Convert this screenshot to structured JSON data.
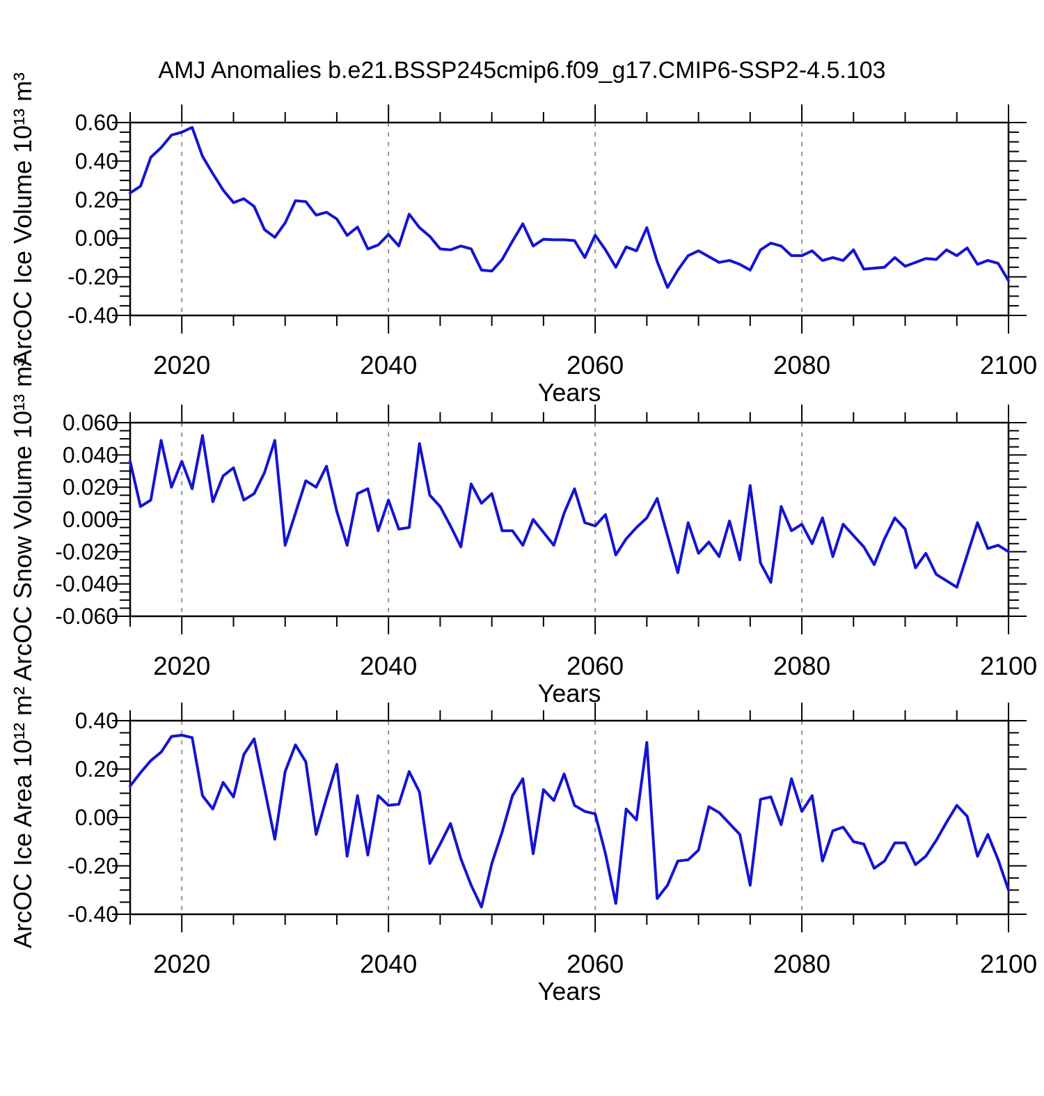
{
  "title": "AMJ Anomalies b.e21.BSSP245cmip6.f09_g17.CMIP6-SSP2-4.5.103",
  "chart_data": {
    "type": "line",
    "xlabel": "Years",
    "x_range": [
      2015,
      2100
    ],
    "xticks": [
      2020,
      2040,
      2060,
      2080,
      2100
    ],
    "xtick_labels": [
      "2020",
      "2040",
      "2060",
      "2080",
      "2100"
    ],
    "xtick_minor_step": 5,
    "x_gridlines": [
      2020,
      2040,
      2060,
      2080
    ],
    "grid_on": true,
    "legend": "none",
    "line_color": "#1414d2",
    "grid_color": "#8a8a8a",
    "frame_color": "#000000",
    "years": [
      2015,
      2016,
      2017,
      2018,
      2019,
      2020,
      2021,
      2022,
      2023,
      2024,
      2025,
      2026,
      2027,
      2028,
      2029,
      2030,
      2031,
      2032,
      2033,
      2034,
      2035,
      2036,
      2037,
      2038,
      2039,
      2040,
      2041,
      2042,
      2043,
      2044,
      2045,
      2046,
      2047,
      2048,
      2049,
      2050,
      2051,
      2052,
      2053,
      2054,
      2055,
      2056,
      2057,
      2058,
      2059,
      2060,
      2061,
      2062,
      2063,
      2064,
      2065,
      2066,
      2067,
      2068,
      2069,
      2070,
      2071,
      2072,
      2073,
      2074,
      2075,
      2076,
      2077,
      2078,
      2079,
      2080,
      2081,
      2082,
      2083,
      2084,
      2085,
      2086,
      2087,
      2088,
      2089,
      2090,
      2091,
      2092,
      2093,
      2094,
      2095,
      2096,
      2097,
      2098,
      2099,
      2100
    ],
    "panels": [
      {
        "name": "ice-volume",
        "ylabel": "ArcOC Ice Volume 10¹³ m³",
        "ylim": [
          -0.4,
          0.6
        ],
        "yticks": [
          0.6,
          0.4,
          0.2,
          0.0,
          -0.2,
          -0.4
        ],
        "ytick_labels": [
          "0.60",
          "0.40",
          "0.20",
          "0.00",
          "-0.20",
          "-0.40"
        ],
        "ytick_minor_step": 0.05,
        "values": [
          0.235,
          0.27,
          0.42,
          0.47,
          0.535,
          0.55,
          0.575,
          0.425,
          0.335,
          0.25,
          0.185,
          0.205,
          0.165,
          0.045,
          0.005,
          0.08,
          0.195,
          0.19,
          0.12,
          0.135,
          0.1,
          0.015,
          0.058,
          -0.055,
          -0.035,
          0.02,
          -0.04,
          0.125,
          0.055,
          0.01,
          -0.055,
          -0.06,
          -0.04,
          -0.055,
          -0.165,
          -0.17,
          -0.11,
          -0.015,
          0.075,
          -0.04,
          -0.005,
          -0.008,
          -0.008,
          -0.012,
          -0.1,
          0.016,
          -0.06,
          -0.15,
          -0.045,
          -0.065,
          0.055,
          -0.12,
          -0.255,
          -0.165,
          -0.09,
          -0.065,
          -0.095,
          -0.125,
          -0.115,
          -0.135,
          -0.165,
          -0.06,
          -0.025,
          -0.04,
          -0.09,
          -0.09,
          -0.065,
          -0.115,
          -0.1,
          -0.115,
          -0.06,
          -0.16,
          -0.155,
          -0.15,
          -0.1,
          -0.145,
          -0.125,
          -0.105,
          -0.11,
          -0.06,
          -0.09,
          -0.05,
          -0.135,
          -0.115,
          -0.13,
          -0.22
        ]
      },
      {
        "name": "snow-volume",
        "ylabel": "ArcOC Snow Volume 10¹³ m³",
        "ylim": [
          -0.06,
          0.06
        ],
        "yticks": [
          0.06,
          0.04,
          0.02,
          0.0,
          -0.02,
          -0.04,
          -0.06
        ],
        "ytick_labels": [
          "0.060",
          "0.040",
          "0.020",
          "0.000",
          "-0.020",
          "-0.040",
          "-0.060"
        ],
        "ytick_minor_step": 0.005,
        "values": [
          0.036,
          0.008,
          0.012,
          0.049,
          0.02,
          0.036,
          0.019,
          0.052,
          0.011,
          0.027,
          0.032,
          0.012,
          0.016,
          0.029,
          0.049,
          -0.016,
          0.004,
          0.024,
          0.02,
          0.033,
          0.005,
          -0.016,
          0.016,
          0.019,
          -0.007,
          0.012,
          -0.006,
          -0.005,
          0.047,
          0.015,
          0.008,
          -0.004,
          -0.017,
          0.022,
          0.01,
          0.016,
          -0.007,
          -0.007,
          -0.016,
          0.0,
          -0.008,
          -0.016,
          0.004,
          0.019,
          -0.002,
          -0.004,
          0.003,
          -0.022,
          -0.012,
          -0.005,
          0.001,
          0.013,
          -0.01,
          -0.033,
          -0.002,
          -0.021,
          -0.014,
          -0.023,
          -0.001,
          -0.025,
          0.021,
          -0.027,
          -0.039,
          0.008,
          -0.007,
          -0.003,
          -0.015,
          0.001,
          -0.023,
          -0.003,
          -0.01,
          -0.017,
          -0.028,
          -0.012,
          0.001,
          -0.006,
          -0.03,
          -0.021,
          -0.034,
          -0.038,
          -0.042,
          -0.022,
          -0.002,
          -0.018,
          -0.016,
          -0.02
        ]
      },
      {
        "name": "ice-area",
        "ylabel": "ArcOC Ice Area 10¹² m²",
        "ylim": [
          -0.4,
          0.4
        ],
        "yticks": [
          0.4,
          0.2,
          0.0,
          -0.2,
          -0.4
        ],
        "ytick_labels": [
          "0.40",
          "0.20",
          "0.00",
          "-0.20",
          "-0.40"
        ],
        "ytick_minor_step": 0.05,
        "values": [
          0.13,
          0.185,
          0.235,
          0.27,
          0.335,
          0.34,
          0.33,
          0.09,
          0.035,
          0.145,
          0.085,
          0.26,
          0.325,
          0.12,
          -0.09,
          0.19,
          0.3,
          0.23,
          -0.07,
          0.08,
          0.22,
          -0.16,
          0.09,
          -0.155,
          0.09,
          0.05,
          0.055,
          0.19,
          0.105,
          -0.19,
          -0.11,
          -0.025,
          -0.17,
          -0.28,
          -0.37,
          -0.19,
          -0.06,
          0.09,
          0.16,
          -0.15,
          0.115,
          0.07,
          0.18,
          0.05,
          0.025,
          0.015,
          -0.15,
          -0.355,
          0.035,
          -0.01,
          0.31,
          -0.335,
          -0.28,
          -0.18,
          -0.175,
          -0.135,
          0.045,
          0.02,
          -0.025,
          -0.07,
          -0.28,
          0.075,
          0.085,
          -0.03,
          0.16,
          0.025,
          0.09,
          -0.18,
          -0.055,
          -0.04,
          -0.1,
          -0.11,
          -0.21,
          -0.18,
          -0.105,
          -0.105,
          -0.195,
          -0.16,
          -0.095,
          -0.02,
          0.05,
          0.005,
          -0.16,
          -0.07,
          -0.175,
          -0.3
        ]
      }
    ]
  }
}
